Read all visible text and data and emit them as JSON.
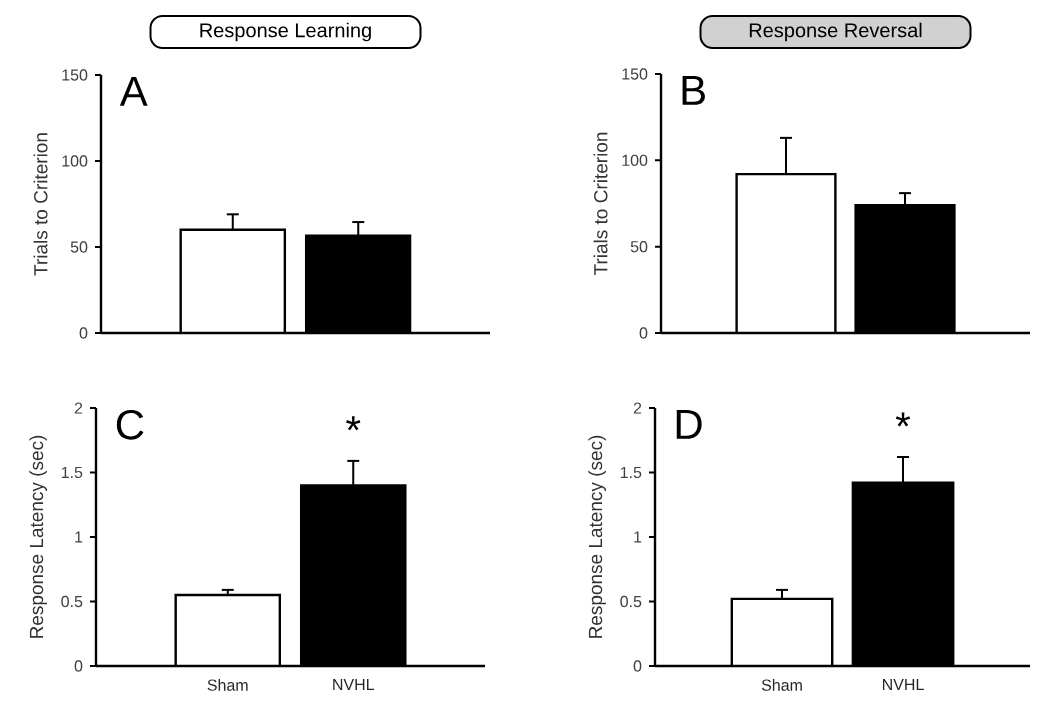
{
  "chart_data": [
    {
      "type": "bar",
      "title": "Response Learning",
      "ylabel": "Trials to Criterion",
      "categories": [
        null,
        null
      ],
      "values": [
        60,
        56.5
      ],
      "colors": [
        "#ffffff",
        "#000000"
      ],
      "errors": [
        [
          60,
          69
        ],
        [
          56.5,
          64.5
        ]
      ],
      "ylim": [
        0,
        150
      ],
      "yticks": [
        0,
        50,
        100,
        150
      ],
      "tick_labels": "y",
      "annotations": [
        "A"
      ]
    },
    {
      "type": "bar",
      "title": "Response Reversal",
      "ylabel": "Trials to Criterion",
      "categories": [
        null,
        null
      ],
      "values": [
        92,
        74
      ],
      "colors": [
        "#ffffff",
        "#000000"
      ],
      "errors": [
        [
          92,
          113
        ],
        [
          74,
          81
        ]
      ],
      "ylim": [
        0,
        150
      ],
      "yticks": [
        0,
        50,
        100,
        150
      ],
      "tick_labels": "y",
      "annotations": [
        "B"
      ]
    },
    {
      "type": "bar",
      "ylabel": "Response Latency (sec)",
      "categories": [
        "Sham",
        "NVHL"
      ],
      "values": [
        0.55,
        1.4
      ],
      "colors": [
        "#ffffff",
        "#000000"
      ],
      "errors": [
        [
          0.55,
          0.59
        ],
        [
          1.4,
          1.59
        ]
      ],
      "ylim": [
        0,
        2
      ],
      "yticks": [
        0,
        0.5,
        1,
        1.5,
        2
      ],
      "annotations": [
        "C",
        "*"
      ]
    },
    {
      "type": "bar",
      "ylabel": "Response Latency (sec)",
      "categories": [
        "Sham",
        "NVHL"
      ],
      "values": [
        0.52,
        1.42
      ],
      "colors": [
        "#ffffff",
        "#000000"
      ],
      "errors": [
        [
          0.52,
          0.59
        ],
        [
          1.42,
          1.62
        ]
      ],
      "ylim": [
        0,
        2
      ],
      "yticks": [
        0,
        0.5,
        1,
        1.5,
        2
      ],
      "annotations": [
        "D",
        "*"
      ]
    }
  ]
}
